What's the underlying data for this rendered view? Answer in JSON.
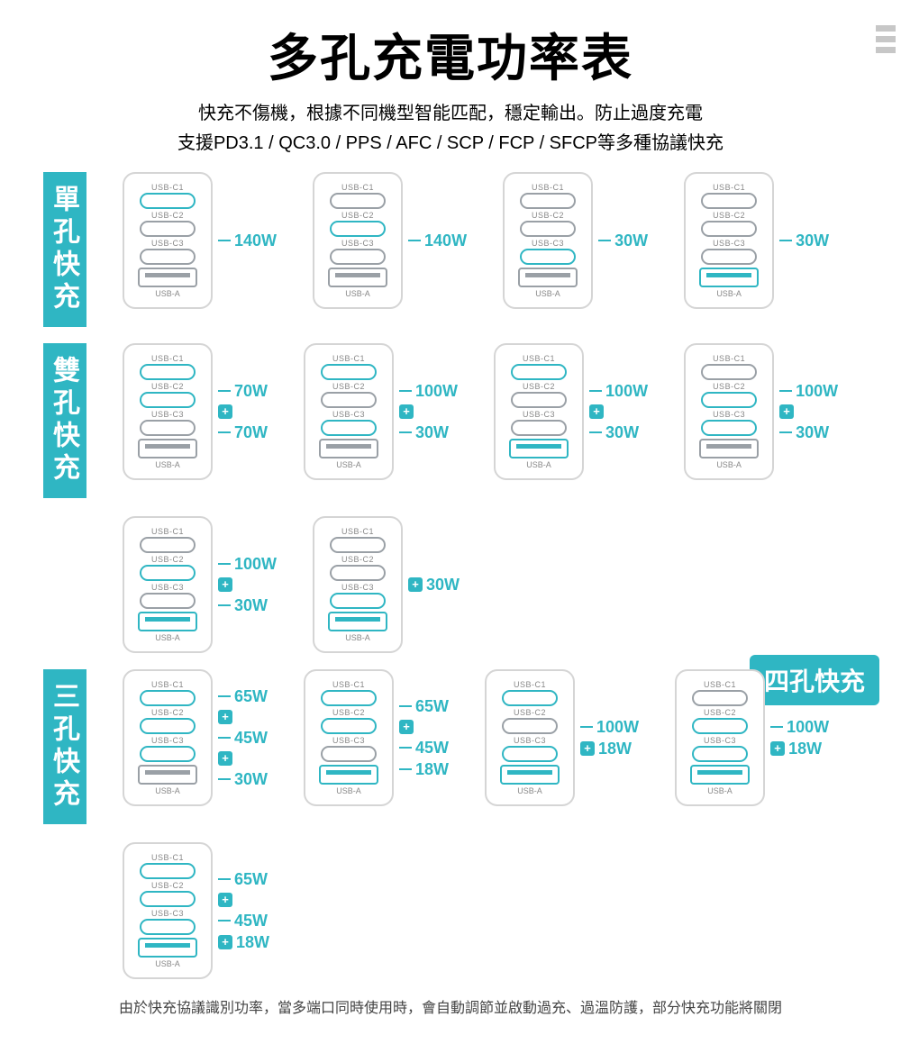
{
  "colors": {
    "accent": "#2fb6c3",
    "text": "#333",
    "border": "#d5d5d5",
    "port_inactive": "#9aa0a6"
  },
  "title": "多孔充電功率表",
  "subtitle1": "快充不傷機，根據不同機型智能匹配，穩定輸出。防止過度充電",
  "subtitle2": "支援PD3.1 / QC3.0 / PPS / AFC / SCP / FCP / SFCP等多種協議快充",
  "port_labels": {
    "c1": "USB-C1",
    "c2": "USB-C2",
    "c3": "USB-C3",
    "a": "USB-A"
  },
  "sections": {
    "single": {
      "label": "單孔快充",
      "units": [
        {
          "active": [
            "c1"
          ],
          "annot": [
            "140W"
          ]
        },
        {
          "active": [
            "c2"
          ],
          "annot": [
            "140W"
          ]
        },
        {
          "active": [
            "c3"
          ],
          "annot": [
            "30W"
          ]
        },
        {
          "active": [
            "a"
          ],
          "annot": [
            "30W"
          ]
        }
      ]
    },
    "double": {
      "label": "雙孔快充",
      "units": [
        {
          "active": [
            "c1",
            "c2"
          ],
          "annot": [
            "70W",
            "+",
            "70W"
          ]
        },
        {
          "active": [
            "c1",
            "c3"
          ],
          "annot": [
            "100W",
            "+",
            "30W"
          ]
        },
        {
          "active": [
            "c1",
            "a"
          ],
          "annot": [
            "100W",
            "+",
            "30W"
          ]
        },
        {
          "active": [
            "c2",
            "c3"
          ],
          "annot": [
            "100W",
            "+",
            "30W"
          ]
        },
        {
          "active": [
            "c2",
            "a"
          ],
          "annot": [
            "100W",
            "+",
            "30W"
          ]
        },
        {
          "active": [
            "c3",
            "a"
          ],
          "annot": [
            "+ 30W"
          ]
        }
      ]
    },
    "four_badge": "四孔快充",
    "triple": {
      "label": "三孔快充",
      "units": [
        {
          "active": [
            "c1",
            "c2",
            "c3"
          ],
          "annot": [
            "65W",
            "+",
            "45W",
            "+",
            "30W"
          ]
        },
        {
          "active": [
            "c1",
            "c2",
            "a"
          ],
          "annot": [
            "65W",
            "+",
            "45W",
            "18W"
          ]
        },
        {
          "active": [
            "c1",
            "c3",
            "a"
          ],
          "annot": [
            "100W",
            "+ 18W"
          ]
        },
        {
          "active": [
            "c2",
            "c3",
            "a"
          ],
          "annot": [
            "100W",
            "+ 18W"
          ]
        },
        {
          "active": [
            "c1",
            "c2",
            "c3",
            "a"
          ],
          "annot": [
            "65W",
            "+",
            "45W",
            "+ 18W"
          ]
        }
      ]
    }
  },
  "footer": "由於快充協議識別功率，當多端口同時使用時，會自動調節並啟動過充、過溫防護，部分快充功能將關閉"
}
